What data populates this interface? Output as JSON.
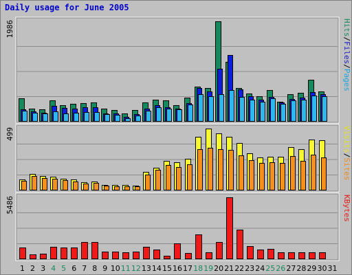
{
  "title": "Daily usage for June 2005",
  "colors": {
    "hits": "#158a5f",
    "files": "#0a1ee0",
    "pages": "#2fb7f0",
    "visits": "#f8f832",
    "sites": "#f5901e",
    "kbytes": "#ee1a1a",
    "weekend": "#1a8a5e",
    "weekday": "#000000",
    "hits_label": "#1a8a5e",
    "files_label": "#1a1acc",
    "pages_label": "#1ba5e0",
    "visits_label": "#e4e41a",
    "sites_label": "#f08a18",
    "kbytes_label": "#e81818"
  },
  "chart_data": {
    "type": "bar",
    "title": "Daily usage for June 2005",
    "days": [
      1,
      2,
      3,
      4,
      5,
      6,
      7,
      8,
      9,
      10,
      11,
      12,
      13,
      14,
      15,
      16,
      17,
      18,
      19,
      20,
      21,
      22,
      23,
      24,
      25,
      26,
      27,
      28,
      29,
      30,
      31
    ],
    "weekend_days": [
      4,
      5,
      11,
      12,
      18,
      19,
      25,
      26
    ],
    "panels": [
      {
        "id": "hits",
        "max_label": "1986",
        "ymax": 1986,
        "legend": [
          {
            "key": "pages",
            "text": "Pages"
          },
          {
            "key": "files",
            "text": "Files"
          },
          {
            "key": "hits",
            "text": "Hits"
          }
        ],
        "series": [
          {
            "key": "hits",
            "values": [
              465,
              262,
              240,
              424,
              330,
              355,
              370,
              385,
              255,
              238,
              170,
              230,
              385,
              440,
              415,
              325,
              480,
              700,
              660,
              1986,
              1180,
              660,
              560,
              510,
              620,
              390,
              550,
              570,
              825,
              600,
              0
            ]
          },
          {
            "key": "files",
            "values": [
              240,
              200,
              180,
              310,
              270,
              260,
              280,
              280,
              170,
              160,
              95,
              150,
              265,
              320,
              290,
              260,
              370,
              665,
              600,
              1050,
              1320,
              645,
              500,
              440,
              490,
              380,
              455,
              470,
              580,
              545,
              0
            ]
          },
          {
            "key": "pages",
            "values": [
              220,
              180,
              160,
              200,
              160,
              175,
              190,
              195,
              145,
              135,
              70,
              120,
              215,
              285,
              265,
              240,
              340,
              540,
              500,
              540,
              620,
              490,
              430,
              395,
              460,
              360,
              420,
              435,
              515,
              500,
              0
            ]
          }
        ]
      },
      {
        "id": "visits",
        "max_label": "499",
        "ymax": 499,
        "legend": [
          {
            "key": "sites",
            "text": "Sites"
          },
          {
            "key": "visits",
            "text": "Visits"
          }
        ],
        "series": [
          {
            "key": "visits",
            "values": [
              90,
              135,
              115,
              110,
              95,
              90,
              65,
              70,
              45,
              42,
              42,
              40,
              150,
              185,
              240,
              225,
              255,
              435,
              499,
              460,
              430,
              385,
              300,
              265,
              270,
              270,
              350,
              335,
              410,
              405,
              0
            ]
          },
          {
            "key": "sites",
            "values": [
              75,
              115,
              100,
              95,
              85,
              70,
              55,
              60,
              40,
              36,
              36,
              35,
              125,
              165,
              205,
              190,
              210,
              330,
              345,
              335,
              325,
              285,
              245,
              220,
              225,
              220,
              275,
              240,
              290,
              265,
              0
            ]
          }
        ]
      },
      {
        "id": "kbytes",
        "max_label": "5486",
        "ymax": 5486,
        "legend": [
          {
            "key": "kbytes",
            "text": "KBytes"
          }
        ],
        "series": [
          {
            "key": "kbytes",
            "values": [
              1050,
              420,
              480,
              1080,
              1020,
              1020,
              1540,
              1540,
              700,
              700,
              600,
              650,
              1080,
              860,
              300,
              1380,
              550,
              2200,
              620,
              1520,
              5486,
              2650,
              1130,
              840,
              910,
              620,
              620,
              600,
              620,
              580,
              0
            ]
          }
        ]
      }
    ]
  }
}
